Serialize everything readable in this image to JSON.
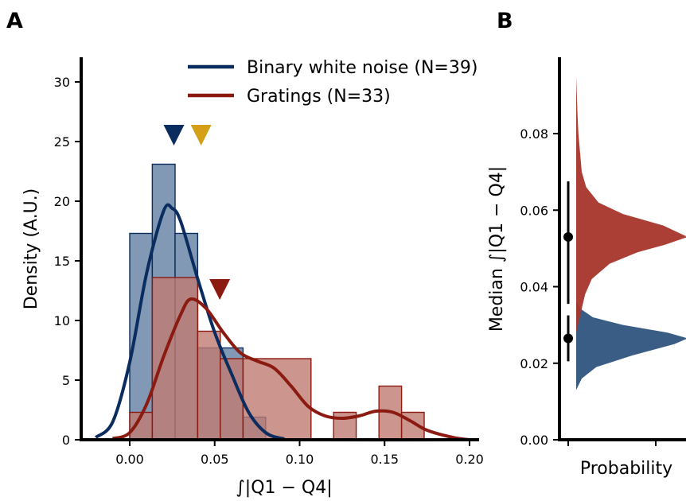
{
  "panel_labels": [
    "A",
    "B"
  ],
  "chart_data": [
    {
      "type": "histogram",
      "panel": "A",
      "xlabel": "∫|Q1 − Q4|",
      "ylabel": "Density (A.U.)",
      "xlim": [
        -0.03,
        0.205
      ],
      "ylim": [
        0,
        32
      ],
      "xticks": [
        0.0,
        0.05,
        0.1,
        0.15,
        0.2
      ],
      "xtick_labels": [
        "0.00",
        "0.05",
        "0.10",
        "0.15",
        "0.20"
      ],
      "yticks": [
        0,
        5,
        10,
        15,
        20,
        25,
        30
      ],
      "ytick_labels": [
        "0",
        "5",
        "10",
        "15",
        "20",
        "25",
        "30"
      ],
      "legend_position": "top",
      "series": [
        {
          "name": "Binary white noise (N=39)",
          "color": "#0b2c5e",
          "fill": "#7a93b1",
          "bins": [
            {
              "x0": 0.0,
              "x1": 0.0133,
              "density": 17.3
            },
            {
              "x0": 0.0133,
              "x1": 0.0267,
              "density": 23.1
            },
            {
              "x0": 0.0267,
              "x1": 0.04,
              "density": 17.3
            },
            {
              "x0": 0.04,
              "x1": 0.0667,
              "density": 7.7
            },
            {
              "x0": 0.0667,
              "x1": 0.08,
              "density": 1.9
            }
          ],
          "kde": [
            [
              -0.02,
              0.2
            ],
            [
              -0.01,
              1.5
            ],
            [
              0.0,
              6.5
            ],
            [
              0.01,
              14.0
            ],
            [
              0.02,
              19.2
            ],
            [
              0.025,
              19.4
            ],
            [
              0.03,
              18.3
            ],
            [
              0.04,
              13.5
            ],
            [
              0.05,
              9.0
            ],
            [
              0.06,
              5.5
            ],
            [
              0.07,
              2.3
            ],
            [
              0.08,
              0.6
            ],
            [
              0.09,
              0.1
            ],
            [
              0.1,
              0.0
            ],
            [
              0.2,
              0.0
            ]
          ],
          "median_marker": 0.026
        },
        {
          "name": "Gratings (N=33)",
          "color": "#8b1a10",
          "fill": "#bf7a72",
          "bins": [
            {
              "x0": 0.0,
              "x1": 0.0133,
              "density": 2.3
            },
            {
              "x0": 0.0133,
              "x1": 0.04,
              "density": 13.6
            },
            {
              "x0": 0.04,
              "x1": 0.0533,
              "density": 9.1
            },
            {
              "x0": 0.0533,
              "x1": 0.0667,
              "density": 6.8
            },
            {
              "x0": 0.0667,
              "x1": 0.1067,
              "density": 6.8
            },
            {
              "x0": 0.12,
              "x1": 0.1333,
              "density": 2.3
            },
            {
              "x0": 0.1467,
              "x1": 0.16,
              "density": 4.5
            },
            {
              "x0": 0.16,
              "x1": 0.1733,
              "density": 2.3
            }
          ],
          "kde": [
            [
              -0.01,
              0.1
            ],
            [
              0.0,
              0.6
            ],
            [
              0.01,
              3.0
            ],
            [
              0.02,
              7.0
            ],
            [
              0.03,
              10.5
            ],
            [
              0.036,
              11.8
            ],
            [
              0.045,
              11.0
            ],
            [
              0.055,
              9.0
            ],
            [
              0.065,
              7.3
            ],
            [
              0.075,
              6.6
            ],
            [
              0.085,
              6.0
            ],
            [
              0.095,
              4.5
            ],
            [
              0.105,
              2.8
            ],
            [
              0.115,
              2.0
            ],
            [
              0.125,
              1.8
            ],
            [
              0.135,
              2.0
            ],
            [
              0.145,
              2.4
            ],
            [
              0.155,
              2.3
            ],
            [
              0.165,
              1.6
            ],
            [
              0.175,
              0.8
            ],
            [
              0.19,
              0.2
            ],
            [
              0.2,
              0.0
            ]
          ],
          "median_marker": 0.053
        }
      ],
      "extra_marker": {
        "x": 0.042,
        "color": "#d4a017"
      }
    },
    {
      "type": "violin",
      "panel": "B",
      "xlabel": "Probability",
      "ylabel": "Median ∫|Q1 − Q4|",
      "ylim": [
        0.0,
        0.1
      ],
      "yticks": [
        0.0,
        0.02,
        0.04,
        0.06,
        0.08
      ],
      "ytick_labels": [
        "0.00",
        "0.02",
        "0.04",
        "0.06",
        "0.08"
      ],
      "series": [
        {
          "name": "Binary white noise",
          "color": "#2f5480",
          "median": 0.0265,
          "ci": [
            0.0205,
            0.0325
          ],
          "density": [
            [
              0.013,
              0.0
            ],
            [
              0.016,
              0.05
            ],
            [
              0.019,
              0.18
            ],
            [
              0.022,
              0.5
            ],
            [
              0.025,
              0.88
            ],
            [
              0.0265,
              1.0
            ],
            [
              0.028,
              0.82
            ],
            [
              0.03,
              0.42
            ],
            [
              0.032,
              0.15
            ],
            [
              0.034,
              0.05
            ],
            [
              0.036,
              0.0
            ]
          ]
        },
        {
          "name": "Gratings",
          "color": "#a8352a",
          "median": 0.053,
          "ci": [
            0.0355,
            0.0675
          ],
          "density": [
            [
              0.028,
              0.0
            ],
            [
              0.033,
              0.04
            ],
            [
              0.038,
              0.08
            ],
            [
              0.042,
              0.14
            ],
            [
              0.046,
              0.3
            ],
            [
              0.049,
              0.55
            ],
            [
              0.051,
              0.8
            ],
            [
              0.053,
              1.0
            ],
            [
              0.056,
              0.78
            ],
            [
              0.059,
              0.42
            ],
            [
              0.062,
              0.2
            ],
            [
              0.066,
              0.09
            ],
            [
              0.07,
              0.05
            ],
            [
              0.075,
              0.035
            ],
            [
              0.08,
              0.02
            ],
            [
              0.085,
              0.012
            ],
            [
              0.09,
              0.006
            ],
            [
              0.095,
              0.0
            ]
          ]
        }
      ]
    }
  ]
}
